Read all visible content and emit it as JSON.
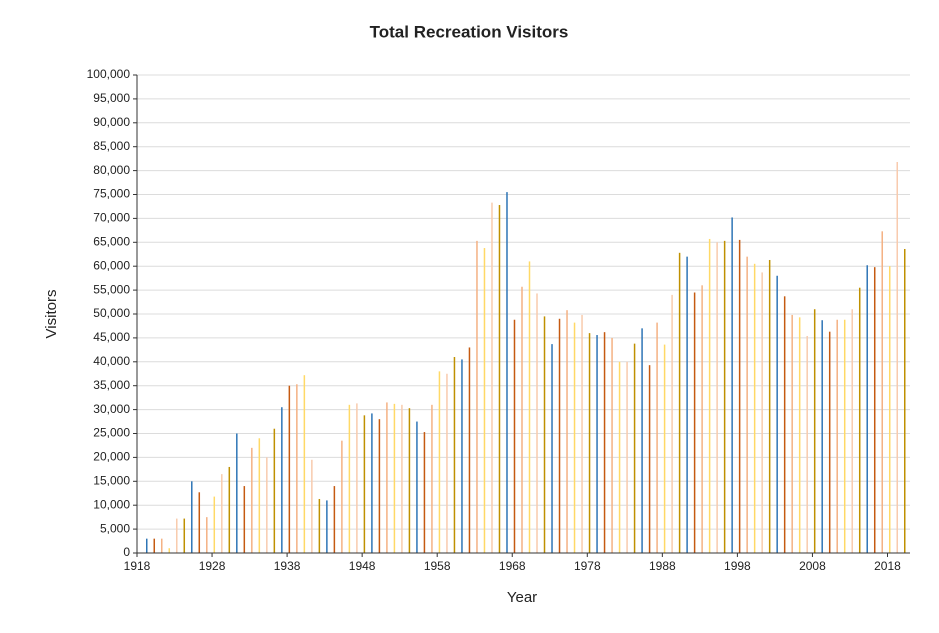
{
  "chart_data": {
    "type": "bar",
    "title": "Total Recreation Visitors",
    "x_label": "Year",
    "y_label": "Visitors",
    "x": [
      1919,
      1920,
      1921,
      1922,
      1923,
      1924,
      1925,
      1926,
      1927,
      1928,
      1929,
      1930,
      1931,
      1932,
      1933,
      1934,
      1935,
      1936,
      1937,
      1938,
      1939,
      1940,
      1941,
      1942,
      1943,
      1944,
      1945,
      1946,
      1947,
      1948,
      1949,
      1950,
      1951,
      1952,
      1953,
      1954,
      1955,
      1956,
      1957,
      1958,
      1959,
      1960,
      1961,
      1962,
      1963,
      1964,
      1965,
      1966,
      1967,
      1968,
      1969,
      1970,
      1971,
      1972,
      1973,
      1974,
      1975,
      1976,
      1977,
      1978,
      1979,
      1980,
      1981,
      1982,
      1983,
      1984,
      1985,
      1986,
      1987,
      1988,
      1989,
      1990,
      1991,
      1992,
      1993,
      1994,
      1995,
      1996,
      1997,
      1998,
      1999,
      2000,
      2001,
      2002,
      2003,
      2004,
      2005,
      2006,
      2007,
      2008,
      2009,
      2010,
      2011,
      2012,
      2013,
      2014,
      2015,
      2016,
      2017,
      2018,
      2019,
      2020
    ],
    "values": [
      3000,
      3000,
      3000,
      1000,
      7200,
      7200,
      15000,
      12700,
      7500,
      11800,
      16500,
      18000,
      25000,
      14000,
      22000,
      24000,
      20000,
      26000,
      30500,
      35000,
      35300,
      37200,
      19500,
      11300,
      11000,
      14000,
      23500,
      31000,
      31300,
      28800,
      29200,
      28000,
      31500,
      31200,
      31000,
      30300,
      27500,
      25300,
      31000,
      38000,
      37500,
      41000,
      40500,
      43000,
      65300,
      63800,
      73300,
      72800,
      75500,
      48800,
      55700,
      61000,
      54300,
      49500,
      43700,
      49000,
      50800,
      48200,
      49800,
      46000,
      45600,
      46200,
      45000,
      40000,
      40000,
      43800,
      47000,
      39300,
      48200,
      43600,
      54000,
      62800,
      62000,
      54500,
      56000,
      65700,
      65000,
      65300,
      70200,
      65500,
      62000,
      60500,
      58700,
      61300,
      58000,
      53700,
      49800,
      49300,
      45400,
      51000,
      48700,
      46300,
      48800,
      48800,
      51000,
      55500,
      60200,
      59800,
      67300,
      60000,
      81800,
      63600
    ],
    "colors": [
      "#2e75b6",
      "#c55a11",
      "#f4b183",
      "#ffd966",
      "#f8cbad",
      "#bf9000"
    ],
    "xlim": [
      1918,
      2021
    ],
    "xticks": [
      1918,
      1928,
      1938,
      1948,
      1958,
      1968,
      1978,
      1988,
      1998,
      2008,
      2018
    ],
    "ylim": [
      0,
      100000
    ],
    "yticks": [
      0,
      {
        "value": 5000,
        "label": "5,000"
      },
      {
        "value": 10000,
        "label": "10,000"
      },
      {
        "value": 15000,
        "label": "15,000"
      },
      {
        "value": 20000,
        "label": "20,000"
      },
      {
        "value": 25000,
        "label": "25,000"
      },
      {
        "value": 30000,
        "label": "30,000"
      },
      {
        "value": 35000,
        "label": "35,000"
      },
      {
        "value": 40000,
        "label": "40,000"
      },
      {
        "value": 45000,
        "label": "45,000"
      },
      {
        "value": 50000,
        "label": "50,000"
      },
      {
        "value": 55000,
        "label": "55,000"
      },
      {
        "value": 60000,
        "label": "60,000"
      },
      {
        "value": 65000,
        "label": "65,000"
      },
      {
        "value": 70000,
        "label": "70,000"
      },
      {
        "value": 75000,
        "label": "75,000"
      },
      {
        "value": 80000,
        "label": "80,000"
      },
      {
        "value": 85000,
        "label": "85,000"
      },
      {
        "value": 90000,
        "label": "90,000"
      },
      {
        "value": 95000,
        "label": "95,000"
      },
      {
        "value": 100000,
        "label": "100,000"
      }
    ],
    "grid": true
  }
}
